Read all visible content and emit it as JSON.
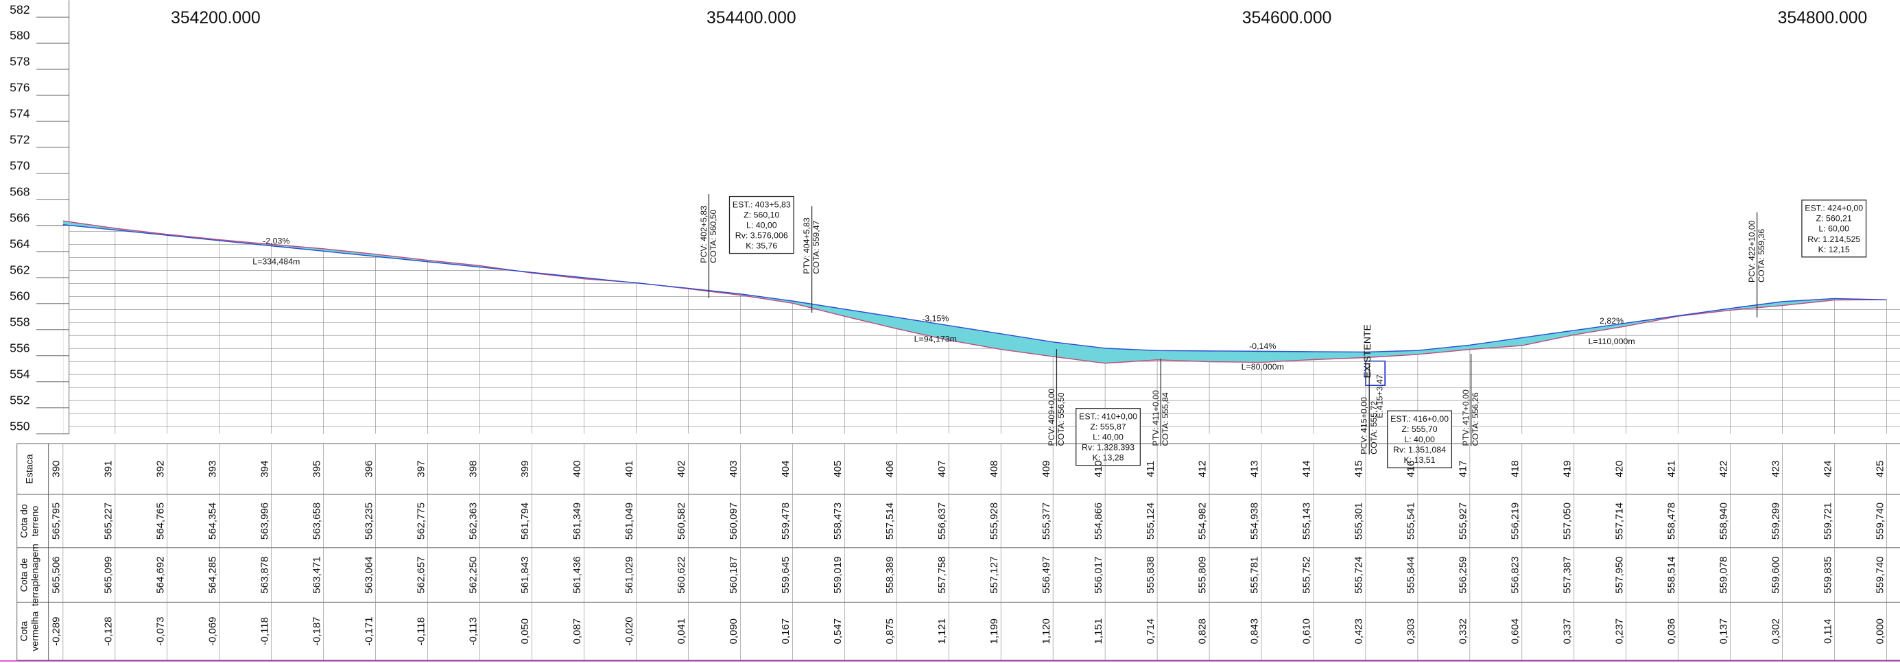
{
  "coordinates": [
    "354200.000",
    "354400.000",
    "354600.000",
    "354800.000"
  ],
  "elevations": [
    "582",
    "580",
    "578",
    "576",
    "574",
    "572",
    "570",
    "568",
    "566",
    "564",
    "562",
    "560",
    "558",
    "556",
    "554",
    "552",
    "550"
  ],
  "table": {
    "row_labels": [
      [
        "Estaca"
      ],
      [
        "Cota do",
        "terreno"
      ],
      [
        "Cota de",
        "terraplenagem"
      ],
      [
        "Cota",
        "vermelha"
      ]
    ],
    "stations": [
      "390",
      "391",
      "392",
      "393",
      "394",
      "395",
      "396",
      "397",
      "398",
      "399",
      "400",
      "401",
      "402",
      "403",
      "404",
      "405",
      "406",
      "407",
      "408",
      "409",
      "410",
      "411",
      "412",
      "413",
      "414",
      "415",
      "416",
      "417",
      "418",
      "419",
      "420",
      "421",
      "422",
      "423",
      "424",
      "425"
    ],
    "terrain": [
      "565,795",
      "565,227",
      "564,765",
      "564,354",
      "563,996",
      "563,658",
      "563,235",
      "562,775",
      "562,363",
      "561,794",
      "561,349",
      "561,049",
      "560,582",
      "560,097",
      "559,478",
      "558,473",
      "557,514",
      "556,637",
      "555,928",
      "555,377",
      "554,866",
      "555,124",
      "554,982",
      "554,938",
      "555,143",
      "555,301",
      "555,541",
      "555,927",
      "556,219",
      "557,050",
      "557,714",
      "558,478",
      "558,940",
      "559,299",
      "559,721",
      "559,740"
    ],
    "grade": [
      "565,506",
      "565,099",
      "564,692",
      "564,285",
      "563,878",
      "563,471",
      "563,064",
      "562,657",
      "562,250",
      "561,843",
      "561,436",
      "561,029",
      "560,622",
      "560,187",
      "559,645",
      "559,019",
      "558,389",
      "557,758",
      "557,127",
      "556,497",
      "556,017",
      "555,838",
      "555,809",
      "555,781",
      "555,752",
      "555,724",
      "555,844",
      "556,259",
      "556,823",
      "557,387",
      "557,950",
      "558,514",
      "559,078",
      "559,600",
      "559,835",
      "559,740"
    ],
    "red": [
      "-0,289",
      "-0,128",
      "-0,073",
      "-0,069",
      "-0,118",
      "-0,187",
      "-0,171",
      "-0,118",
      "-0,113",
      "0,050",
      "0,087",
      "-0,020",
      "0,041",
      "0,090",
      "0,167",
      "0,547",
      "0,875",
      "1,121",
      "1,199",
      "1,120",
      "1,151",
      "0,714",
      "0,828",
      "0,843",
      "0,610",
      "0,423",
      "0,303",
      "0,332",
      "0,604",
      "0,337",
      "0,237",
      "0,036",
      "0,137",
      "0,302",
      "0,114",
      "0,000"
    ]
  },
  "grades": [
    {
      "slope": "-2,03%",
      "length": "L=334,484m"
    },
    {
      "slope": "-3,15%",
      "length": "L=94,173m"
    },
    {
      "slope": "-0,14%",
      "length": "L=80,000m"
    },
    {
      "slope": "2,82%",
      "length": "L=110,000m"
    }
  ],
  "vertical_labels": [
    [
      "PCV: 402+5,83",
      "COTA: 560,50"
    ],
    [
      "PTV: 404+5,83",
      "COTA: 559,47"
    ],
    [
      "PCV: 409+0,00",
      "COTA: 556,50"
    ],
    [
      "PTV: 411+0,00",
      "COTA: 555,84"
    ],
    [
      "PCV: 415+0,00",
      "COTA: 555,72"
    ],
    [
      "PTV: 417+0,00",
      "COTA: 556,26"
    ],
    [
      "PCV: 422+10,00",
      "COTA: 559,36"
    ]
  ],
  "curve_boxes": [
    [
      "EST.: 403+5,83",
      "Z: 560,10",
      "L: 40,00",
      "Rv: 3.576,006",
      "K: 35,76"
    ],
    [
      "EST.: 410+0,00",
      "Z: 555,87",
      "L: 40,00",
      "Rv: 1.328,393",
      "K: 13,28"
    ],
    [
      "EST.: 416+0,00",
      "Z: 555,70",
      "L: 40,00",
      "Rv: 1.351,084",
      "K: 13,51"
    ],
    [
      "EST.: 424+0,00",
      "Z: 560,21",
      "L: 60,00",
      "Rv: 1.214,525",
      "K: 12,15"
    ]
  ],
  "existing": [
    "EXISTENTE",
    "E.415+3,47"
  ]
}
